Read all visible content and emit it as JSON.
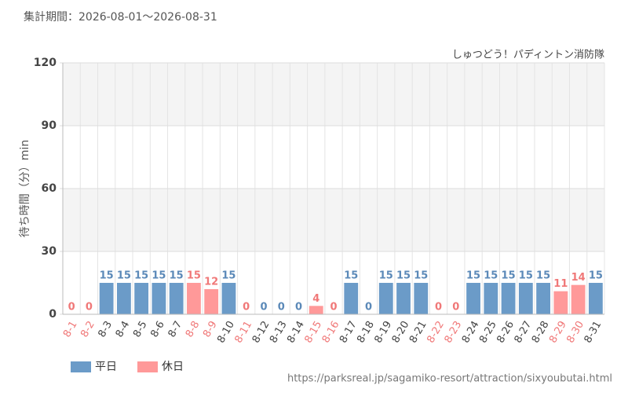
{
  "chart_data": {
    "type": "bar",
    "title": "集計期間：2026-08-01～2026-08-31",
    "subtitle": "しゅつどう！パディントン消防隊",
    "y_label": "待ち時間（分）min",
    "source": "https://parksreal.jp/sagamiko-resort/attraction/sixyoubutai.html",
    "categories": [
      "8-1",
      "8-2",
      "8-3",
      "8-4",
      "8-5",
      "8-6",
      "8-7",
      "8-8",
      "8-9",
      "8-10",
      "8-11",
      "8-12",
      "8-13",
      "8-14",
      "8-15",
      "8-16",
      "8-17",
      "8-18",
      "8-19",
      "8-20",
      "8-21",
      "8-22",
      "8-23",
      "8-24",
      "8-25",
      "8-26",
      "8-27",
      "8-28",
      "8-29",
      "8-30",
      "8-31"
    ],
    "series": [
      {
        "name": "平日",
        "color": "#6b9bc8",
        "label_color": "#5b89b8",
        "values": [
          null,
          null,
          15,
          15,
          15,
          15,
          15,
          null,
          null,
          15,
          null,
          0,
          0,
          0,
          null,
          null,
          15,
          0,
          15,
          15,
          15,
          null,
          null,
          15,
          15,
          15,
          15,
          15,
          null,
          null,
          15
        ]
      },
      {
        "name": "休日",
        "color": "#ff9999",
        "label_color": "#f07878",
        "values": [
          0,
          0,
          null,
          null,
          null,
          null,
          null,
          15,
          12,
          null,
          0,
          null,
          null,
          null,
          4,
          0,
          null,
          null,
          null,
          null,
          null,
          0,
          0,
          null,
          null,
          null,
          null,
          null,
          11,
          14,
          null
        ]
      }
    ],
    "ylim": [
      0,
      120
    ],
    "yticks": [
      0,
      30,
      60,
      90,
      120
    ],
    "grid": true
  }
}
